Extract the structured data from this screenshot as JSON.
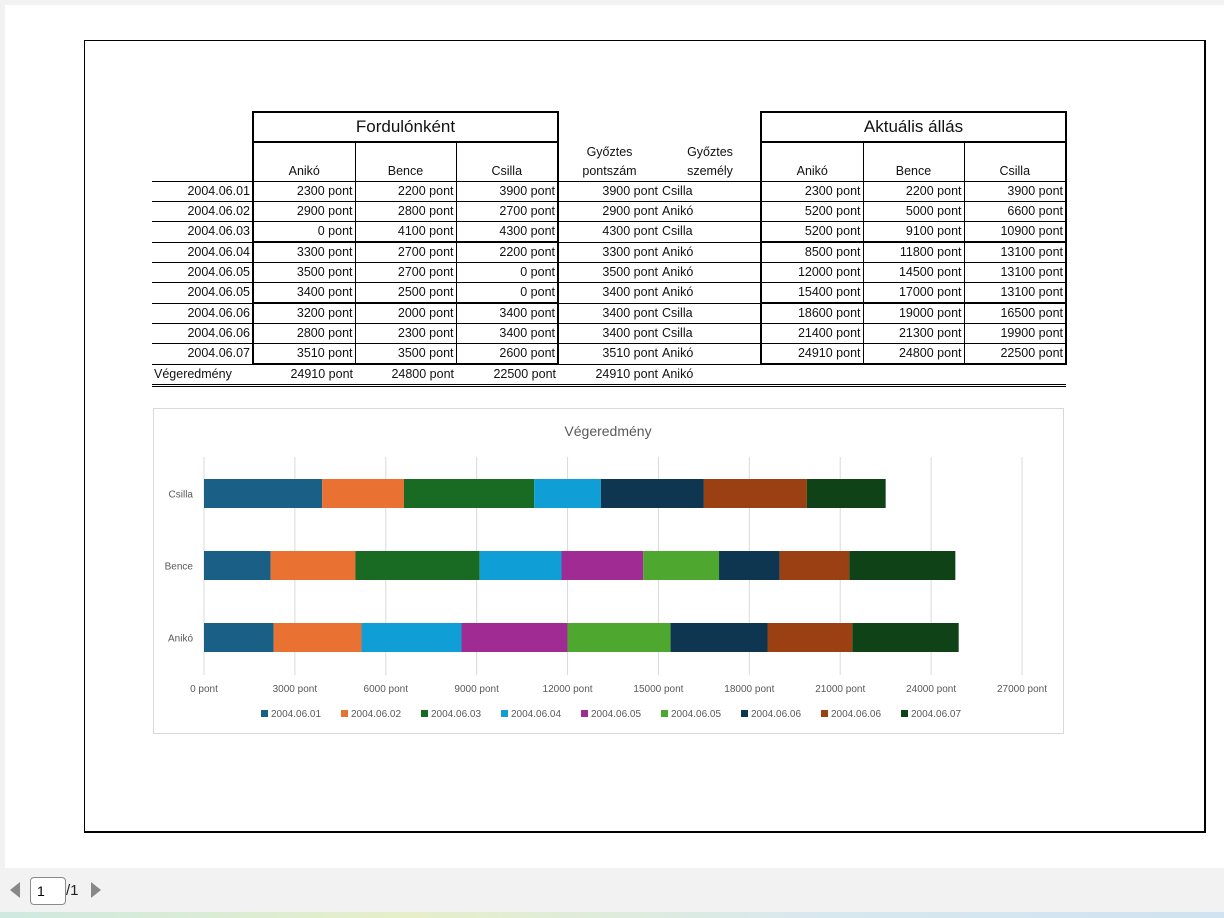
{
  "table": {
    "group1_title": "Fordulónként",
    "group2_title": "Aktuális állás",
    "headers": {
      "aniko": "Anikó",
      "bence": "Bence",
      "csilla": "Csilla",
      "winner_score_l1": "Győztes",
      "winner_score_l2": "pontszám",
      "winner_person_l1": "Győztes",
      "winner_person_l2": "személy",
      "cur_aniko": "Anikó",
      "cur_bence": "Bence",
      "cur_csilla": "Csilla"
    },
    "rows": [
      {
        "date": "2004.06.01",
        "a": "2300 pont",
        "b": "2200 pont",
        "c": "3900 pont",
        "ws": "3900 pont",
        "wp": "Csilla",
        "ca": "2300 pont",
        "cb": "2200 pont",
        "cc": "3900 pont"
      },
      {
        "date": "2004.06.02",
        "a": "2900 pont",
        "b": "2800 pont",
        "c": "2700 pont",
        "ws": "2900 pont",
        "wp": "Anikó",
        "ca": "5200 pont",
        "cb": "5000 pont",
        "cc": "6600 pont"
      },
      {
        "date": "2004.06.03",
        "a": "0 pont",
        "b": "4100 pont",
        "c": "4300 pont",
        "ws": "4300 pont",
        "wp": "Csilla",
        "ca": "5200 pont",
        "cb": "9100 pont",
        "cc": "10900 pont"
      },
      {
        "date": "2004.06.04",
        "a": "3300 pont",
        "b": "2700 pont",
        "c": "2200 pont",
        "ws": "3300 pont",
        "wp": "Anikó",
        "ca": "8500 pont",
        "cb": "11800 pont",
        "cc": "13100 pont"
      },
      {
        "date": "2004.06.05",
        "a": "3500 pont",
        "b": "2700 pont",
        "c": "0 pont",
        "ws": "3500 pont",
        "wp": "Anikó",
        "ca": "12000 pont",
        "cb": "14500 pont",
        "cc": "13100 pont"
      },
      {
        "date": "2004.06.05",
        "a": "3400 pont",
        "b": "2500 pont",
        "c": "0 pont",
        "ws": "3400 pont",
        "wp": "Anikó",
        "ca": "15400 pont",
        "cb": "17000 pont",
        "cc": "13100 pont"
      },
      {
        "date": "2004.06.06",
        "a": "3200 pont",
        "b": "2000 pont",
        "c": "3400 pont",
        "ws": "3400 pont",
        "wp": "Csilla",
        "ca": "18600 pont",
        "cb": "19000 pont",
        "cc": "16500 pont"
      },
      {
        "date": "2004.06.06",
        "a": "2800 pont",
        "b": "2300 pont",
        "c": "3400 pont",
        "ws": "3400 pont",
        "wp": "Csilla",
        "ca": "21400 pont",
        "cb": "21300 pont",
        "cc": "19900 pont"
      },
      {
        "date": "2004.06.07",
        "a": "3510 pont",
        "b": "3500 pont",
        "c": "2600 pont",
        "ws": "3510 pont",
        "wp": "Anikó",
        "ca": "24910 pont",
        "cb": "24800 pont",
        "cc": "22500 pont"
      }
    ],
    "final": {
      "label": "Végeredmény",
      "a": "24910 pont",
      "b": "24800 pont",
      "c": "22500 pont",
      "ws": "24910 pont",
      "wp": "Anikó"
    }
  },
  "chart_data": {
    "type": "bar",
    "orientation": "horizontal",
    "stacked": true,
    "title": "Végeredmény",
    "categories": [
      "Csilla",
      "Bence",
      "Anikó"
    ],
    "xlim": [
      0,
      27000
    ],
    "x_ticks": [
      "0 pont",
      "3000 pont",
      "6000 pont",
      "9000 pont",
      "12000 pont",
      "15000 pont",
      "18000 pont",
      "21000 pont",
      "24000 pont",
      "27000 pont"
    ],
    "grid": true,
    "legend_position": "bottom",
    "series": [
      {
        "name": "2004.06.01",
        "color": "#1a5f86",
        "values": [
          3900,
          2200,
          2300
        ]
      },
      {
        "name": "2004.06.02",
        "color": "#e97132",
        "values": [
          2700,
          2800,
          2900
        ]
      },
      {
        "name": "2004.06.03",
        "color": "#196b24",
        "values": [
          4300,
          4100,
          0
        ]
      },
      {
        "name": "2004.06.04",
        "color": "#0f9ed5",
        "values": [
          2200,
          2700,
          3300
        ]
      },
      {
        "name": "2004.06.05",
        "color": "#a02b93",
        "values": [
          0,
          2700,
          3500
        ]
      },
      {
        "name": "2004.06.05",
        "color": "#4ea72e",
        "values": [
          0,
          2500,
          3400
        ]
      },
      {
        "name": "2004.06.06",
        "color": "#0e3650",
        "values": [
          3400,
          2000,
          3200
        ]
      },
      {
        "name": "2004.06.06",
        "color": "#9b4012",
        "values": [
          3400,
          2300,
          2800
        ]
      },
      {
        "name": "2004.06.07",
        "color": "#0f4217",
        "values": [
          2600,
          3500,
          3510
        ]
      }
    ]
  },
  "viewer": {
    "page_value": "1",
    "page_total": "/1"
  }
}
